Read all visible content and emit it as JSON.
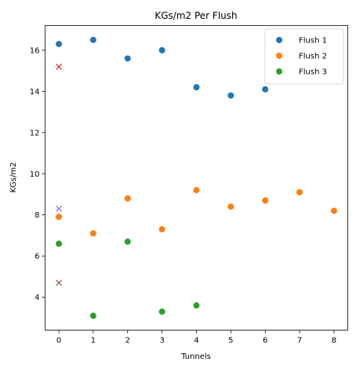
{
  "chart_data": {
    "type": "scatter",
    "title": "KGs/m2 Per Flush",
    "xlabel": "Tunnels",
    "ylabel": "KGs/m2",
    "xlim": [
      -0.4,
      8.4
    ],
    "ylim": [
      2.4,
      17.2
    ],
    "xticks": [
      0,
      1,
      2,
      3,
      4,
      5,
      6,
      7,
      8
    ],
    "yticks": [
      4,
      6,
      8,
      10,
      12,
      14,
      16
    ],
    "grid": false,
    "legend_position": "top-right",
    "series": [
      {
        "name": "Flush 1",
        "color": "#1f77b4",
        "marker": "circle",
        "x": [
          0,
          1,
          2,
          3,
          4,
          5,
          6
        ],
        "y": [
          16.3,
          16.5,
          15.6,
          16.0,
          14.2,
          13.8,
          14.1
        ]
      },
      {
        "name": "Flush 2",
        "color": "#ff7f0e",
        "marker": "circle",
        "x": [
          0,
          1,
          2,
          3,
          4,
          5,
          6,
          7,
          8
        ],
        "y": [
          7.9,
          7.1,
          8.8,
          7.3,
          9.2,
          8.4,
          8.7,
          9.1,
          8.2
        ]
      },
      {
        "name": "Flush 3",
        "color": "#2ca02c",
        "marker": "circle",
        "x": [
          0,
          1,
          2,
          3,
          4
        ],
        "y": [
          6.6,
          3.1,
          6.7,
          3.3,
          3.6
        ]
      }
    ],
    "annotations": [
      {
        "x": 0,
        "y": 15.2,
        "color": "#d62728",
        "marker": "x"
      },
      {
        "x": 0,
        "y": 8.3,
        "color": "#9467bd",
        "marker": "x"
      },
      {
        "x": 0,
        "y": 4.7,
        "color": "#8c564b",
        "marker": "x"
      }
    ]
  }
}
